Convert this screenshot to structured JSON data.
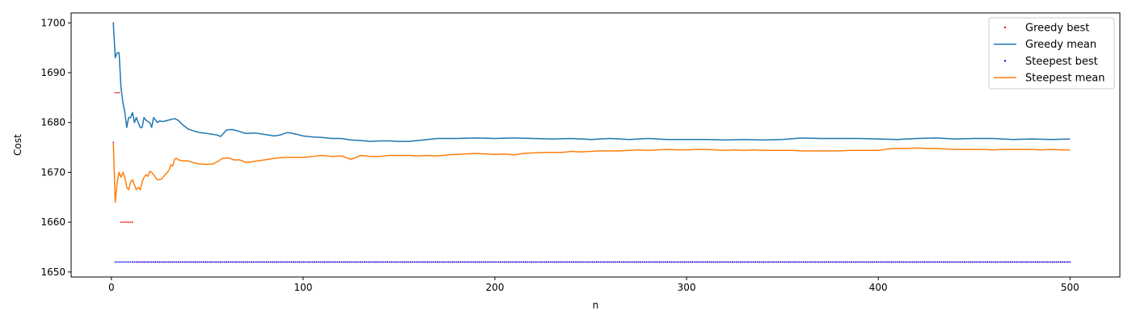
{
  "chart_data": {
    "type": "line",
    "xlabel": "n",
    "ylabel": "Cost",
    "xlim": [
      -21,
      526
    ],
    "ylim": [
      1649,
      1702
    ],
    "x_ticks": [
      0,
      100,
      200,
      300,
      400,
      500
    ],
    "y_ticks": [
      1650,
      1660,
      1670,
      1680,
      1690,
      1700
    ],
    "grid": false,
    "legend_position": "top-right",
    "series": [
      {
        "name": "Greedy best",
        "style": "points",
        "color": "#ff0000",
        "points": [
          [
            1,
            1700
          ],
          [
            2,
            1686
          ],
          [
            3,
            1686
          ],
          [
            4,
            1686
          ],
          [
            5,
            1660
          ],
          [
            6,
            1660
          ],
          [
            7,
            1660
          ],
          [
            8,
            1660
          ],
          [
            9,
            1660
          ],
          [
            10,
            1660
          ],
          [
            11,
            1660
          ]
        ],
        "constant_from": {
          "start": 12,
          "end": 500,
          "value": 1652
        }
      },
      {
        "name": "Greedy mean",
        "style": "line",
        "color": "#1f77b4",
        "points": [
          [
            1,
            1700
          ],
          [
            2,
            1693
          ],
          [
            3,
            1694
          ],
          [
            4,
            1694
          ],
          [
            5,
            1687
          ],
          [
            6,
            1684
          ],
          [
            7,
            1682
          ],
          [
            8,
            1679
          ],
          [
            9,
            1681
          ],
          [
            10,
            1681
          ],
          [
            11,
            1682
          ],
          [
            12,
            1680
          ],
          [
            13,
            1681
          ],
          [
            14,
            1680
          ],
          [
            15,
            1679
          ],
          [
            16,
            1679
          ],
          [
            17,
            1681
          ],
          [
            18,
            1680.5
          ],
          [
            19,
            1680.2
          ],
          [
            20,
            1680
          ],
          [
            21,
            1679
          ],
          [
            22,
            1681
          ],
          [
            23,
            1680.5
          ],
          [
            24,
            1680
          ],
          [
            25,
            1680.3
          ],
          [
            27,
            1680.2
          ],
          [
            30,
            1680.5
          ],
          [
            33,
            1680.8
          ],
          [
            35,
            1680.4
          ],
          [
            37,
            1679.6
          ],
          [
            40,
            1678.7
          ],
          [
            43,
            1678.3
          ],
          [
            46,
            1678
          ],
          [
            50,
            1677.8
          ],
          [
            55,
            1677.5
          ],
          [
            57,
            1677.2
          ],
          [
            60,
            1678.5
          ],
          [
            63,
            1678.6
          ],
          [
            66,
            1678.3
          ],
          [
            70,
            1677.8
          ],
          [
            75,
            1677.9
          ],
          [
            80,
            1677.6
          ],
          [
            85,
            1677.3
          ],
          [
            88,
            1677.5
          ],
          [
            92,
            1678
          ],
          [
            97,
            1677.6
          ],
          [
            100,
            1677.3
          ],
          [
            105,
            1677.1
          ],
          [
            110,
            1677
          ],
          [
            115,
            1676.8
          ],
          [
            120,
            1676.8
          ],
          [
            125,
            1676.5
          ],
          [
            130,
            1676.4
          ],
          [
            135,
            1676.2
          ],
          [
            140,
            1676.3
          ],
          [
            145,
            1676.3
          ],
          [
            150,
            1676.2
          ],
          [
            155,
            1676.2
          ],
          [
            160,
            1676.4
          ],
          [
            165,
            1676.6
          ],
          [
            170,
            1676.8
          ],
          [
            180,
            1676.8
          ],
          [
            190,
            1676.9
          ],
          [
            200,
            1676.8
          ],
          [
            210,
            1676.9
          ],
          [
            220,
            1676.8
          ],
          [
            230,
            1676.7
          ],
          [
            240,
            1676.8
          ],
          [
            250,
            1676.6
          ],
          [
            260,
            1676.8
          ],
          [
            270,
            1676.6
          ],
          [
            280,
            1676.8
          ],
          [
            290,
            1676.6
          ],
          [
            300,
            1676.6
          ],
          [
            310,
            1676.6
          ],
          [
            320,
            1676.5
          ],
          [
            330,
            1676.6
          ],
          [
            340,
            1676.5
          ],
          [
            350,
            1676.6
          ],
          [
            360,
            1676.9
          ],
          [
            370,
            1676.8
          ],
          [
            380,
            1676.8
          ],
          [
            390,
            1676.8
          ],
          [
            400,
            1676.7
          ],
          [
            410,
            1676.6
          ],
          [
            420,
            1676.8
          ],
          [
            430,
            1676.9
          ],
          [
            440,
            1676.7
          ],
          [
            450,
            1676.8
          ],
          [
            460,
            1676.8
          ],
          [
            470,
            1676.6
          ],
          [
            480,
            1676.7
          ],
          [
            490,
            1676.6
          ],
          [
            500,
            1676.7
          ]
        ]
      },
      {
        "name": "Steepest best",
        "style": "points",
        "color": "#0000ff",
        "points": [
          [
            1,
            1676
          ]
        ],
        "constant_from": {
          "start": 2,
          "end": 500,
          "value": 1652
        }
      },
      {
        "name": "Steepest mean",
        "style": "line",
        "color": "#ff7f0e",
        "points": [
          [
            1,
            1676
          ],
          [
            2,
            1664
          ],
          [
            3,
            1668
          ],
          [
            4,
            1670
          ],
          [
            5,
            1669
          ],
          [
            6,
            1670
          ],
          [
            7,
            1669
          ],
          [
            8,
            1667
          ],
          [
            9,
            1666.5
          ],
          [
            10,
            1668
          ],
          [
            11,
            1668.5
          ],
          [
            12,
            1667.5
          ],
          [
            13,
            1666.5
          ],
          [
            14,
            1667
          ],
          [
            15,
            1666.5
          ],
          [
            16,
            1668
          ],
          [
            17,
            1669
          ],
          [
            18,
            1669.5
          ],
          [
            19,
            1669.2
          ],
          [
            20,
            1670.2
          ],
          [
            21,
            1670
          ],
          [
            22,
            1669.5
          ],
          [
            24,
            1668.5
          ],
          [
            26,
            1668.6
          ],
          [
            28,
            1669.5
          ],
          [
            30,
            1670.4
          ],
          [
            31,
            1671.5
          ],
          [
            32,
            1671.3
          ],
          [
            33,
            1672.7
          ],
          [
            34,
            1672.8
          ],
          [
            35,
            1672.5
          ],
          [
            37,
            1672.3
          ],
          [
            40,
            1672.3
          ],
          [
            43,
            1671.9
          ],
          [
            46,
            1671.7
          ],
          [
            50,
            1671.6
          ],
          [
            53,
            1671.7
          ],
          [
            56,
            1672.3
          ],
          [
            58,
            1672.8
          ],
          [
            61,
            1672.9
          ],
          [
            64,
            1672.5
          ],
          [
            67,
            1672.5
          ],
          [
            70,
            1672
          ],
          [
            73,
            1672.1
          ],
          [
            76,
            1672.3
          ],
          [
            80,
            1672.5
          ],
          [
            85,
            1672.8
          ],
          [
            90,
            1673
          ],
          [
            95,
            1673
          ],
          [
            100,
            1673
          ],
          [
            105,
            1673.2
          ],
          [
            110,
            1673.4
          ],
          [
            115,
            1673.2
          ],
          [
            120,
            1673.3
          ],
          [
            125,
            1672.6
          ],
          [
            130,
            1673.4
          ],
          [
            135,
            1673.2
          ],
          [
            140,
            1673.2
          ],
          [
            145,
            1673.4
          ],
          [
            150,
            1673.4
          ],
          [
            155,
            1673.4
          ],
          [
            160,
            1673.3
          ],
          [
            165,
            1673.4
          ],
          [
            170,
            1673.3
          ],
          [
            175,
            1673.5
          ],
          [
            180,
            1673.6
          ],
          [
            185,
            1673.7
          ],
          [
            190,
            1673.8
          ],
          [
            195,
            1673.7
          ],
          [
            200,
            1673.6
          ],
          [
            205,
            1673.7
          ],
          [
            210,
            1673.5
          ],
          [
            215,
            1673.8
          ],
          [
            220,
            1673.9
          ],
          [
            225,
            1674
          ],
          [
            230,
            1674
          ],
          [
            235,
            1674
          ],
          [
            240,
            1674.2
          ],
          [
            245,
            1674.1
          ],
          [
            250,
            1674.2
          ],
          [
            255,
            1674.3
          ],
          [
            260,
            1674.3
          ],
          [
            265,
            1674.3
          ],
          [
            270,
            1674.4
          ],
          [
            275,
            1674.5
          ],
          [
            280,
            1674.4
          ],
          [
            285,
            1674.5
          ],
          [
            290,
            1674.6
          ],
          [
            295,
            1674.5
          ],
          [
            300,
            1674.5
          ],
          [
            305,
            1674.6
          ],
          [
            310,
            1674.6
          ],
          [
            315,
            1674.5
          ],
          [
            320,
            1674.4
          ],
          [
            325,
            1674.5
          ],
          [
            330,
            1674.4
          ],
          [
            335,
            1674.5
          ],
          [
            340,
            1674.4
          ],
          [
            345,
            1674.4
          ],
          [
            350,
            1674.4
          ],
          [
            355,
            1674.4
          ],
          [
            360,
            1674.3
          ],
          [
            365,
            1674.3
          ],
          [
            370,
            1674.3
          ],
          [
            375,
            1674.3
          ],
          [
            380,
            1674.3
          ],
          [
            385,
            1674.4
          ],
          [
            390,
            1674.4
          ],
          [
            395,
            1674.4
          ],
          [
            400,
            1674.4
          ],
          [
            405,
            1674.7
          ],
          [
            410,
            1674.8
          ],
          [
            415,
            1674.8
          ],
          [
            420,
            1674.9
          ],
          [
            425,
            1674.8
          ],
          [
            430,
            1674.8
          ],
          [
            435,
            1674.7
          ],
          [
            440,
            1674.6
          ],
          [
            445,
            1674.6
          ],
          [
            450,
            1674.6
          ],
          [
            455,
            1674.6
          ],
          [
            460,
            1674.5
          ],
          [
            465,
            1674.6
          ],
          [
            470,
            1674.6
          ],
          [
            475,
            1674.6
          ],
          [
            480,
            1674.6
          ],
          [
            485,
            1674.5
          ],
          [
            490,
            1674.6
          ],
          [
            495,
            1674.5
          ],
          [
            500,
            1674.5
          ]
        ]
      }
    ]
  }
}
